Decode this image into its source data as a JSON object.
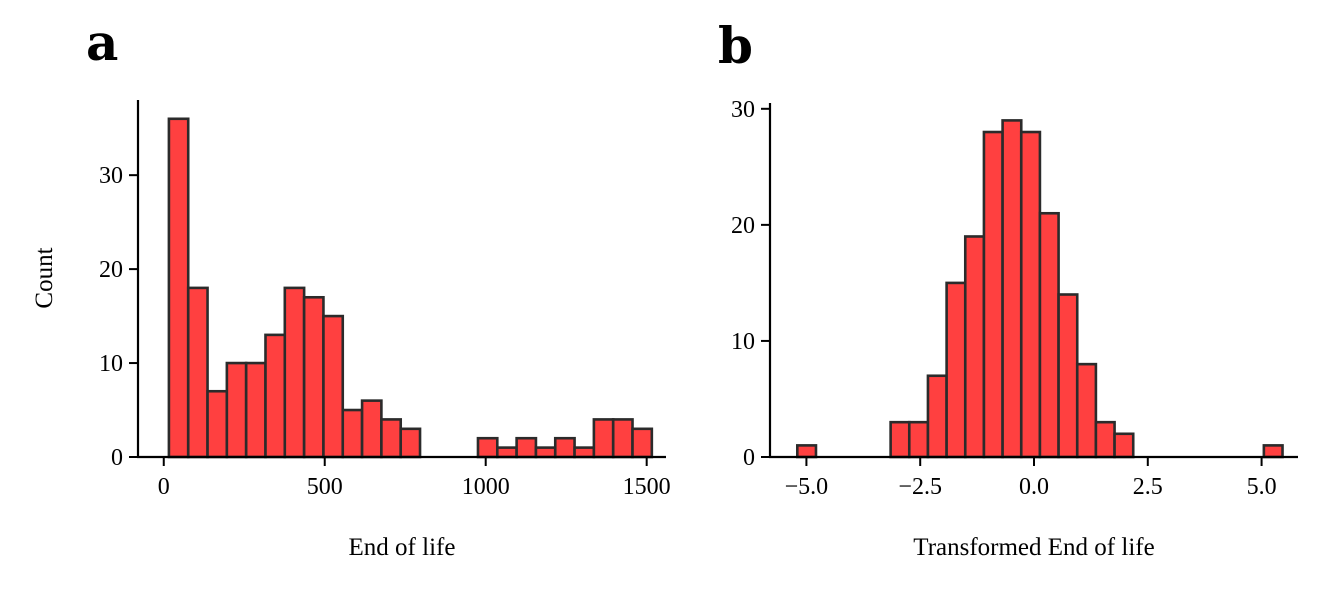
{
  "bar_color": "#ff4040",
  "edge_color": "#2b2b2b",
  "chart_data": [
    {
      "type": "bar",
      "panel_label": "a",
      "xlabel": "End of life",
      "ylabel": "Count",
      "xlim": [
        -80,
        1560
      ],
      "ylim": [
        0,
        38
      ],
      "xticks": [
        0,
        500,
        1000,
        1500
      ],
      "xtick_labels": [
        "0",
        "500",
        "1000",
        "1500"
      ],
      "yticks": [
        0,
        10,
        20,
        30
      ],
      "ytick_labels": [
        "0",
        "10",
        "20",
        "30"
      ],
      "grid": false,
      "bin_edges": [
        16,
        76,
        136,
        196,
        256,
        316,
        376,
        436,
        496,
        556,
        616,
        676,
        736,
        796,
        856,
        916,
        976,
        1036,
        1096,
        1156,
        1216,
        1276,
        1336,
        1396,
        1456,
        1516
      ],
      "values": [
        36,
        18,
        7,
        10,
        10,
        13,
        18,
        17,
        15,
        5,
        6,
        4,
        3,
        0,
        0,
        0,
        2,
        1,
        2,
        1,
        2,
        1,
        4,
        4,
        3
      ]
    },
    {
      "type": "bar",
      "panel_label": "b",
      "xlabel": "Transformed End of life",
      "ylabel": "",
      "xlim": [
        -5.8,
        5.8
      ],
      "ylim": [
        0,
        30.5
      ],
      "xticks": [
        -5,
        -2.5,
        0,
        2.5,
        5
      ],
      "xtick_labels": [
        "−5.0",
        "−2.5",
        "0.0",
        "2.5",
        "5.0"
      ],
      "yticks": [
        0,
        10,
        20,
        30
      ],
      "ytick_labels": [
        "0",
        "10",
        "20",
        "30"
      ],
      "grid": false,
      "bin_edges": [
        -5.2,
        -4.79,
        -4.38,
        -3.97,
        -3.56,
        -3.15,
        -2.74,
        -2.33,
        -1.92,
        -1.51,
        -1.1,
        -0.69,
        -0.28,
        0.13,
        0.54,
        0.95,
        1.36,
        1.77,
        2.18,
        2.59,
        3.0,
        3.41,
        3.82,
        4.23,
        4.64,
        5.05,
        5.46
      ],
      "values": [
        1,
        0,
        0,
        0,
        0,
        3,
        3,
        7,
        15,
        19,
        28,
        29,
        28,
        21,
        14,
        8,
        3,
        2,
        0,
        0,
        0,
        0,
        0,
        0,
        0,
        1
      ]
    }
  ]
}
